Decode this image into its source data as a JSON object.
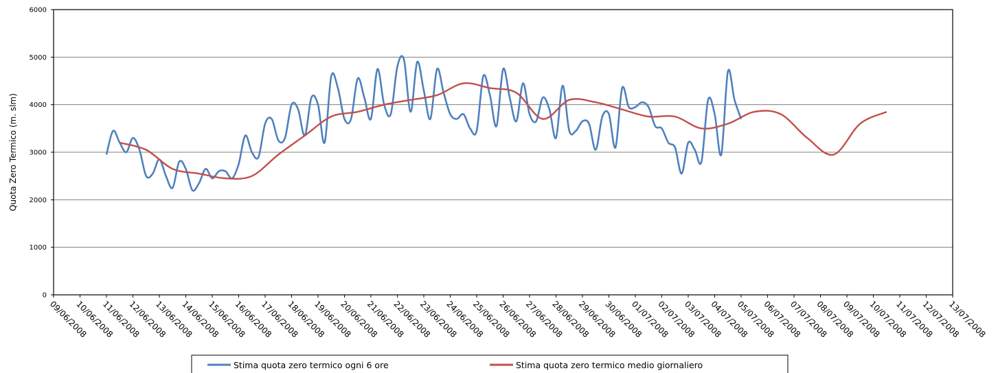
{
  "chart_data": {
    "type": "line",
    "ylabel": "Quota Zero Termico (m. slm)",
    "ylim": [
      0,
      6000
    ],
    "yticks": [
      0,
      1000,
      2000,
      3000,
      4000,
      5000,
      6000
    ],
    "x_range": [
      "09/06/2008",
      "13/07/2008"
    ],
    "x_tick_labels": [
      "09/06/2008",
      "10/06/2008",
      "11/06/2008",
      "12/06/2008",
      "13/06/2008",
      "14/06/2008",
      "15/06/2008",
      "16/06/2008",
      "17/06/2008",
      "18/06/2008",
      "19/06/2008",
      "20/06/2008",
      "21/06/2008",
      "22/06/2008",
      "23/06/2008",
      "24/06/2008",
      "25/06/2008",
      "26/06/2008",
      "27/06/2008",
      "28/06/2008",
      "29/06/2008",
      "30/06/2008",
      "01/07/2008",
      "02/07/2008",
      "03/07/2008",
      "04/07/2008",
      "05/07/2008",
      "06/07/2008",
      "07/07/2008",
      "08/07/2008",
      "09/07/2008",
      "10/07/2008",
      "11/07/2008",
      "12/07/2008",
      "13/07/2008"
    ],
    "grid": "horizontal",
    "legend_position": "bottom",
    "series": [
      {
        "name": "Stima quota zero termico ogni 6 ore",
        "color": "#4f81bd",
        "x_start": "11/06/2008",
        "step_hours": 6,
        "values": [
          2950,
          3450,
          3200,
          3000,
          3300,
          3050,
          2500,
          2550,
          2850,
          2500,
          2250,
          2800,
          2650,
          2200,
          2350,
          2650,
          2450,
          2600,
          2600,
          2450,
          2750,
          3350,
          3000,
          2900,
          3600,
          3700,
          3250,
          3300,
          4000,
          3900,
          3350,
          4150,
          4000,
          3200,
          4600,
          4350,
          3700,
          3700,
          4550,
          4150,
          3700,
          4750,
          4000,
          3800,
          4800,
          4950,
          3850,
          4900,
          4300,
          3700,
          4750,
          4250,
          3800,
          3700,
          3800,
          3500,
          3450,
          4600,
          4200,
          3550,
          4750,
          4150,
          3650,
          4450,
          3800,
          3650,
          4150,
          3900,
          3300,
          4400,
          3450,
          3450,
          3650,
          3600,
          3050,
          3750,
          3800,
          3100,
          4350,
          3950,
          3950,
          4050,
          3950,
          3550,
          3500,
          3200,
          3100,
          2550,
          3200,
          3050,
          2800,
          4100,
          3800,
          2950,
          4700,
          4100,
          3700
        ]
      },
      {
        "name": "Stima quota zero termico medio giornaliero",
        "color": "#c0504d",
        "x_start": "11/06/2008 12:00",
        "step_hours": 24,
        "values": [
          3200,
          3050,
          2650,
          2550,
          2450,
          2500,
          2950,
          3350,
          3750,
          3850,
          4000,
          4100,
          4200,
          4450,
          4350,
          4250,
          3700,
          4100,
          4050,
          3900,
          3750,
          3750,
          3500,
          3600,
          3850,
          3800,
          3300,
          2950,
          3600,
          3850
        ]
      }
    ]
  }
}
